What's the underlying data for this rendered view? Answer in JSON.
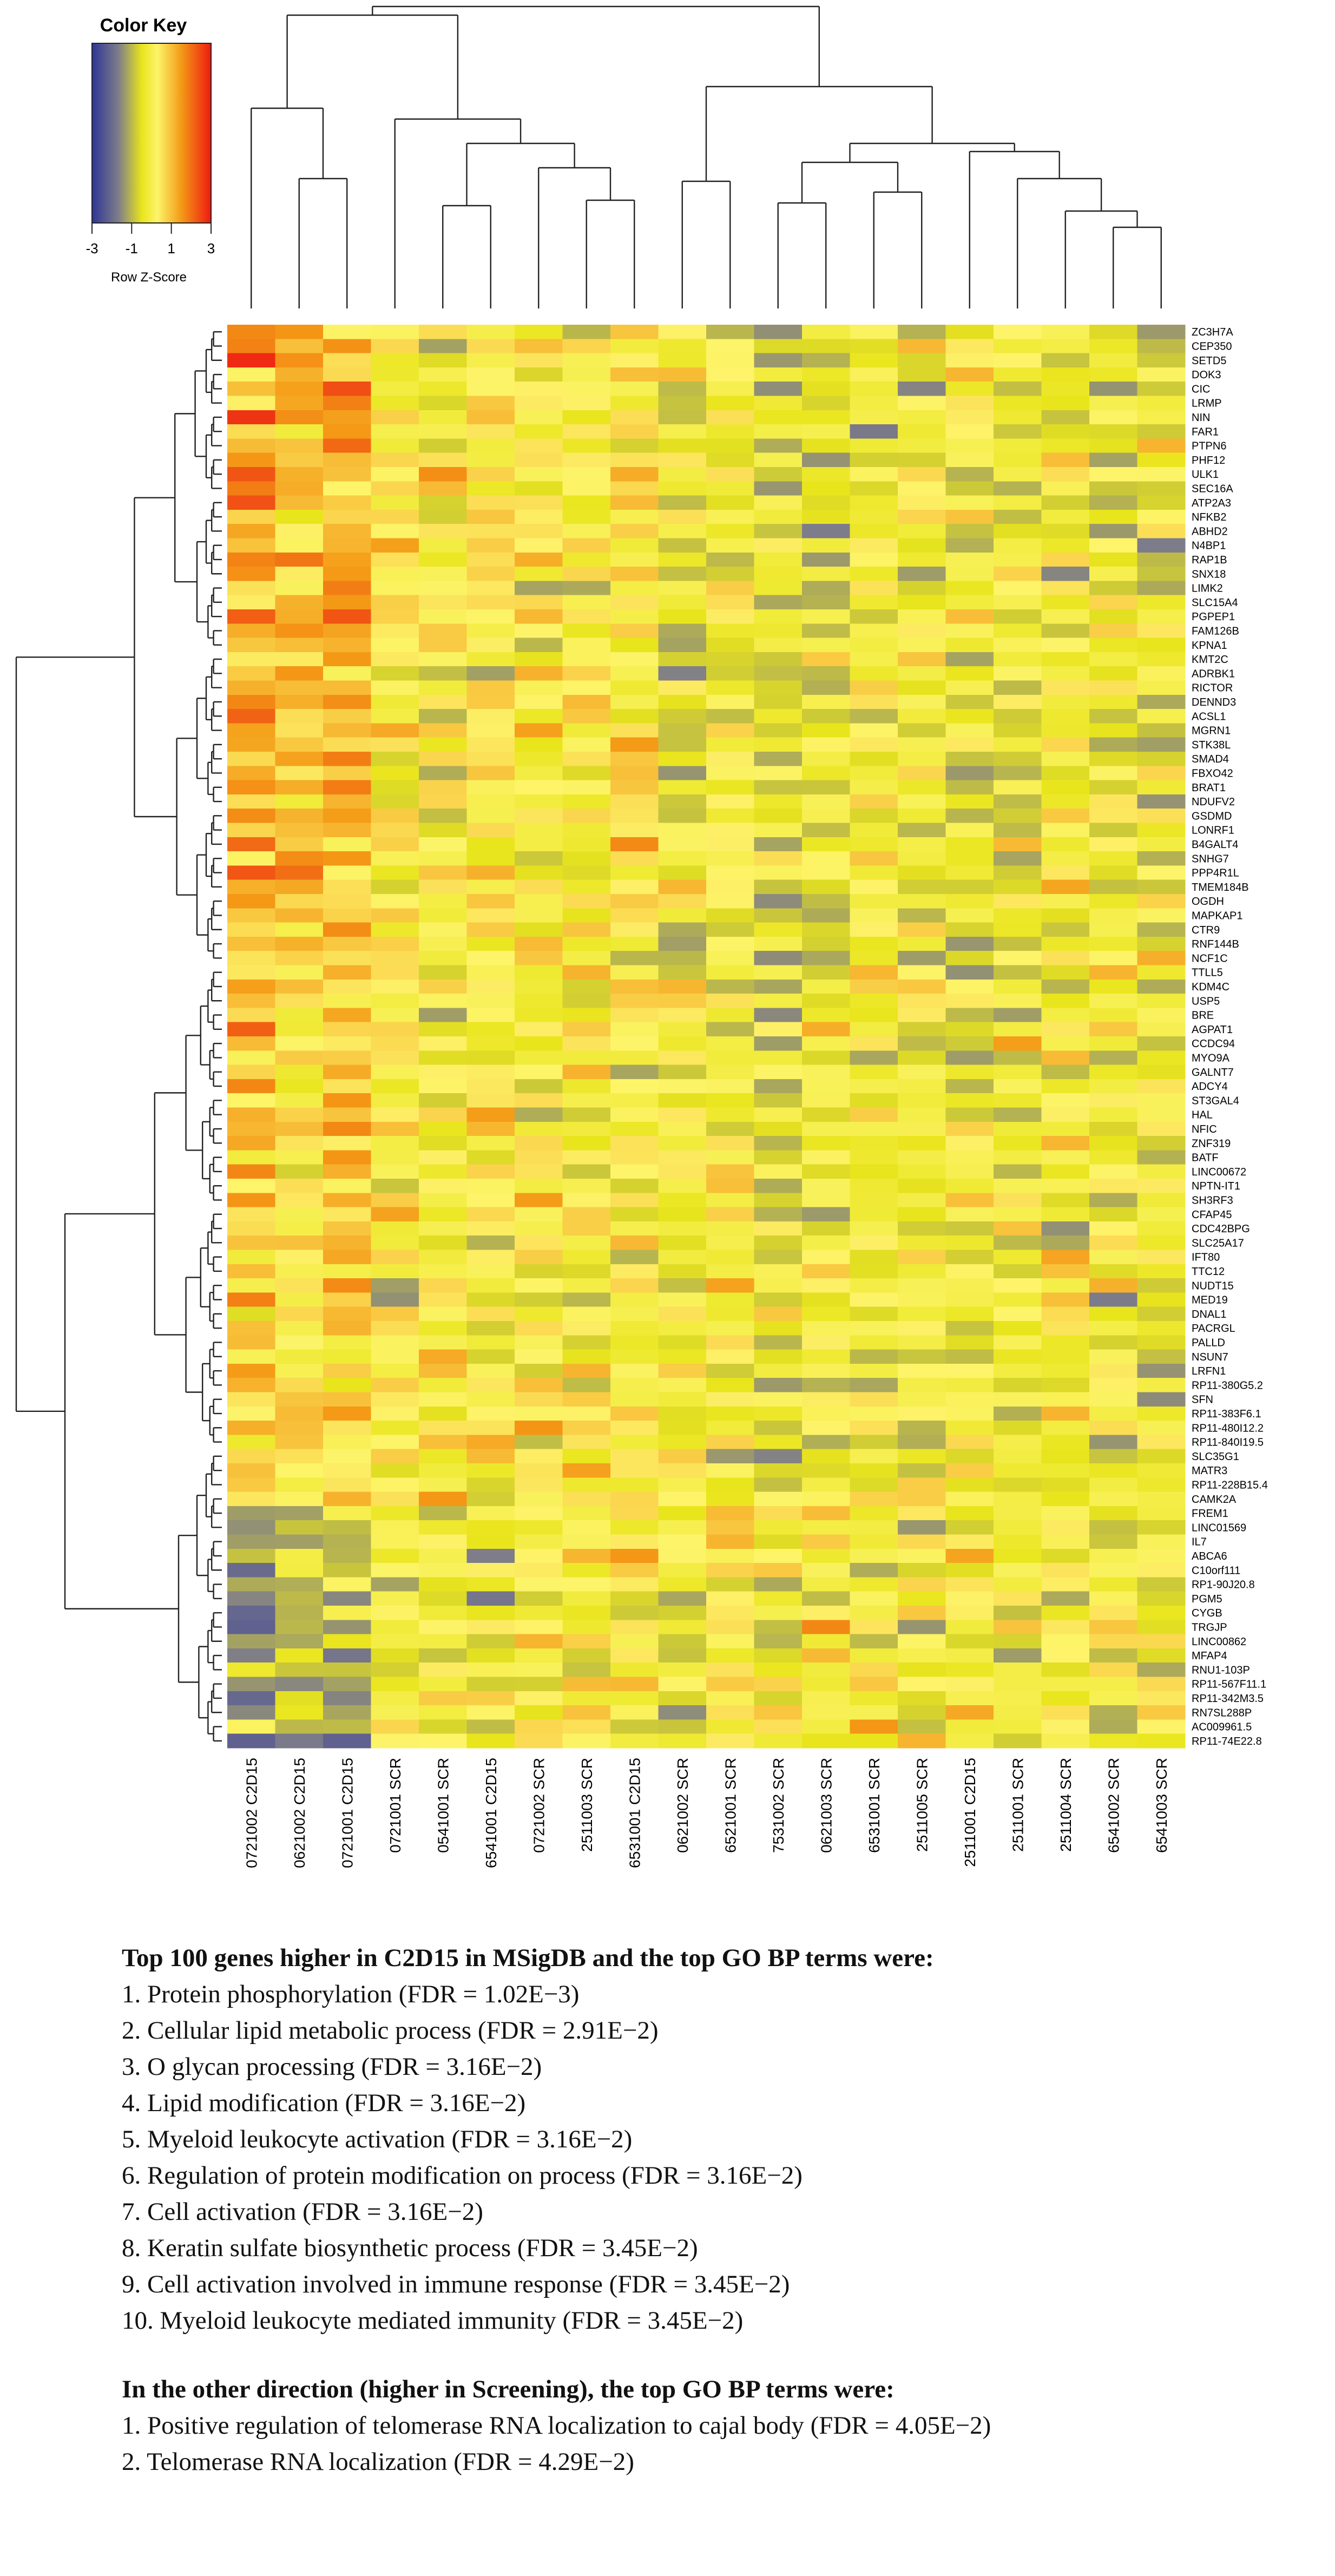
{
  "chart_data": {
    "type": "heatmap",
    "title": "",
    "color_key": {
      "title": "Color Key",
      "xlabel": "Row Z-Score",
      "ticks": [
        "-3",
        "-1",
        "1",
        "3"
      ],
      "range": [
        -3,
        3
      ],
      "colors": [
        "#3b3e9a",
        "#7a7a8c",
        "#e8e11a",
        "#f3a215",
        "#ef1f14"
      ]
    },
    "columns": [
      "0721002 C2D15",
      "0621002 C2D15",
      "0721001 C2D15",
      "0721001 SCR",
      "0541001 SCR",
      "6541001 C2D15",
      "0721002 SCR",
      "2511003 SCR",
      "6531001 C2D15",
      "0621002 SCR",
      "6521001 SCR",
      "7531002 SCR",
      "0621003 SCR",
      "6531001 SCR",
      "2511005 SCR",
      "2511001 C2D15",
      "2511001 SCR",
      "2511004 SCR",
      "6541002 SCR",
      "6541003 SCR"
    ],
    "rows": [
      "ZC3H7A",
      "CEP350",
      "SETD5",
      "DOK3",
      "CIC",
      "LRMP",
      "NIN",
      "FAR1",
      "PTPN6",
      "PHF12",
      "ULK1",
      "SEC16A",
      "ATP2A3",
      "NFKB2",
      "ABHD2",
      "N4BP1",
      "RAP1B",
      "SNX18",
      "LIMK2",
      "SLC15A4",
      "PGPEP1",
      "FAM126B",
      "KPNA1",
      "KMT2C",
      "ADRBK1",
      "RICTOR",
      "DENND3",
      "ACSL1",
      "MGRN1",
      "STK38L",
      "SMAD4",
      "FBXO42",
      "BRAT1",
      "NDUFV2",
      "GSDMD",
      "LONRF1",
      "B4GALT4",
      "SNHG7",
      "PPP4R1L",
      "TMEM184B",
      "OGDH",
      "MAPKAP1",
      "CTR9",
      "RNF144B",
      "NCF1C",
      "TTLL5",
      "KDM4C",
      "USP5",
      "BRE",
      "AGPAT1",
      "CCDC94",
      "MYO9A",
      "GALNT7",
      "ADCY4",
      "ST3GAL4",
      "HAL",
      "NFIC",
      "ZNF319",
      "BATF",
      "LINC00672",
      "NPTN-IT1",
      "SH3RF3",
      "CFAP45",
      "CDC42BPG",
      "SLC25A17",
      "IFT80",
      "TTC12",
      "NUDT15",
      "MED19",
      "DNAL1",
      "PACRGL",
      "PALLD",
      "NSUN7",
      "LRFN1",
      "RP11-380G5.2",
      "SFN",
      "RP11-383F6.1",
      "RP11-480I12.2",
      "RP11-840I19.5",
      "SLC35G1",
      "MATR3",
      "RP11-228B15.4",
      "CAMK2A",
      "FREM1",
      "LINC01569",
      "IL7",
      "ABCA6",
      "C10orf111",
      "RP1-90J20.8",
      "PGM5",
      "CYGB",
      "TRGJP",
      "LINC00862",
      "MFAP4",
      "RNU1-103P",
      "RP11-567F11.1",
      "RP11-342M3.5",
      "RN7SL288P",
      "AC009961.5",
      "RP11-74E22.8"
    ],
    "row_clusters": "top rows higher in C2D15 columns, lower rows mixed",
    "notes": "Row-scaled expression values (z-scores) approximated from colors"
  },
  "text": {
    "heading1": "Top 100 genes higher in C2D15 in MSigDB and the top GO BP terms were:",
    "list1": [
      "1. Protein phosphorylation (FDR = 1.02E−3)",
      "2. Cellular lipid metabolic process (FDR = 2.91E−2)",
      "3. O glycan processing (FDR = 3.16E−2)",
      "4. Lipid modification (FDR = 3.16E−2)",
      "5. Myeloid leukocyte activation (FDR = 3.16E−2)",
      "6. Regulation of protein modification on process (FDR = 3.16E−2)",
      "7. Cell activation (FDR = 3.16E−2)",
      "8. Keratin sulfate biosynthetic process (FDR = 3.45E−2)",
      "9. Cell activation involved in immune response (FDR = 3.45E−2)",
      "10. Myeloid leukocyte mediated immunity (FDR = 3.45E−2)"
    ],
    "heading2": "In the other direction (higher in Screening), the top GO BP terms were:",
    "list2": [
      "1. Positive regulation of telomerase RNA localization to cajal body (FDR = 4.05E−2)",
      "2. Telomerase RNA localization (FDR = 4.29E−2)"
    ]
  }
}
